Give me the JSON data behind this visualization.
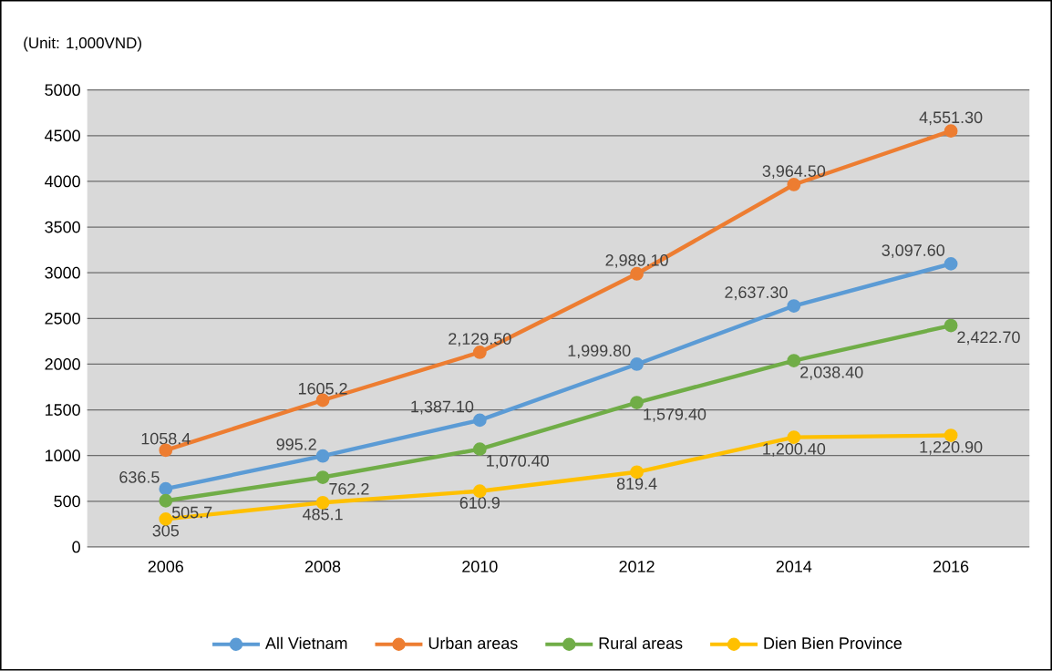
{
  "chart_data": {
    "type": "line",
    "ylabel": "(Unit: 1,000VND)",
    "categories": [
      "2006",
      "2008",
      "2010",
      "2012",
      "2014",
      "2016"
    ],
    "ylim": [
      0,
      5000
    ],
    "yticks": [
      0,
      500,
      1000,
      1500,
      2000,
      2500,
      3000,
      3500,
      4000,
      4500,
      5000
    ],
    "grid": "y",
    "legend": "bottom",
    "marker": "circle",
    "line_style": "solid",
    "series": [
      {
        "name": "All Vietnam",
        "color": "#5b9bd5",
        "values": [
          636.5,
          995.2,
          1387.1,
          1999.8,
          2637.3,
          3097.6
        ],
        "value_labels": [
          "636.5",
          "995.2",
          "1,387.10",
          "1,999.80",
          "2,637.30",
          "3,097.60"
        ]
      },
      {
        "name": "Urban areas",
        "color": "#ed7d31",
        "values": [
          1058.4,
          1605.2,
          2129.5,
          2989.1,
          3964.5,
          4551.3
        ],
        "value_labels": [
          "1058.4",
          "1605.2",
          "2,129.50",
          "2,989.10",
          "3,964.50",
          "4,551.30"
        ]
      },
      {
        "name": "Rural areas",
        "color": "#70ad47",
        "values": [
          505.7,
          762.2,
          1070.4,
          1579.4,
          2038.4,
          2422.7
        ],
        "value_labels": [
          "505.7",
          "762.2",
          "1,070.40",
          "1,579.40",
          "2,038.40",
          "2,422.70"
        ]
      },
      {
        "name": "Dien Bien Province",
        "color": "#ffc000",
        "values": [
          305,
          485.1,
          610.9,
          819.4,
          1200.4,
          1220.9
        ],
        "value_labels": [
          "305",
          "485.1",
          "610.9",
          "819.4",
          "1,200.40",
          "1,220.90"
        ]
      }
    ]
  }
}
